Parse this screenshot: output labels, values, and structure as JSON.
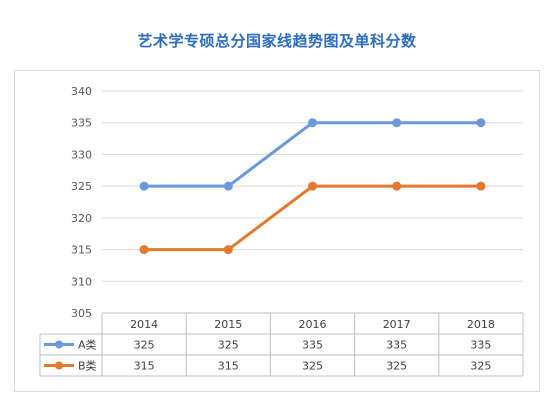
{
  "chart_data": {
    "type": "line",
    "title": "艺术学专硕总分国家线趋势图及单科分数",
    "categories": [
      "2014",
      "2015",
      "2016",
      "2017",
      "2018"
    ],
    "series": [
      {
        "name": "A类",
        "color": "#6a98d8",
        "values": [
          325,
          325,
          335,
          335,
          335
        ]
      },
      {
        "name": "B类",
        "color": "#e3782e",
        "values": [
          315,
          315,
          325,
          325,
          325
        ]
      }
    ],
    "ylim": [
      305,
      340
    ],
    "yticks": [
      305,
      310,
      315,
      320,
      325,
      330,
      335,
      340
    ],
    "grid": true,
    "legend": "data-table"
  }
}
